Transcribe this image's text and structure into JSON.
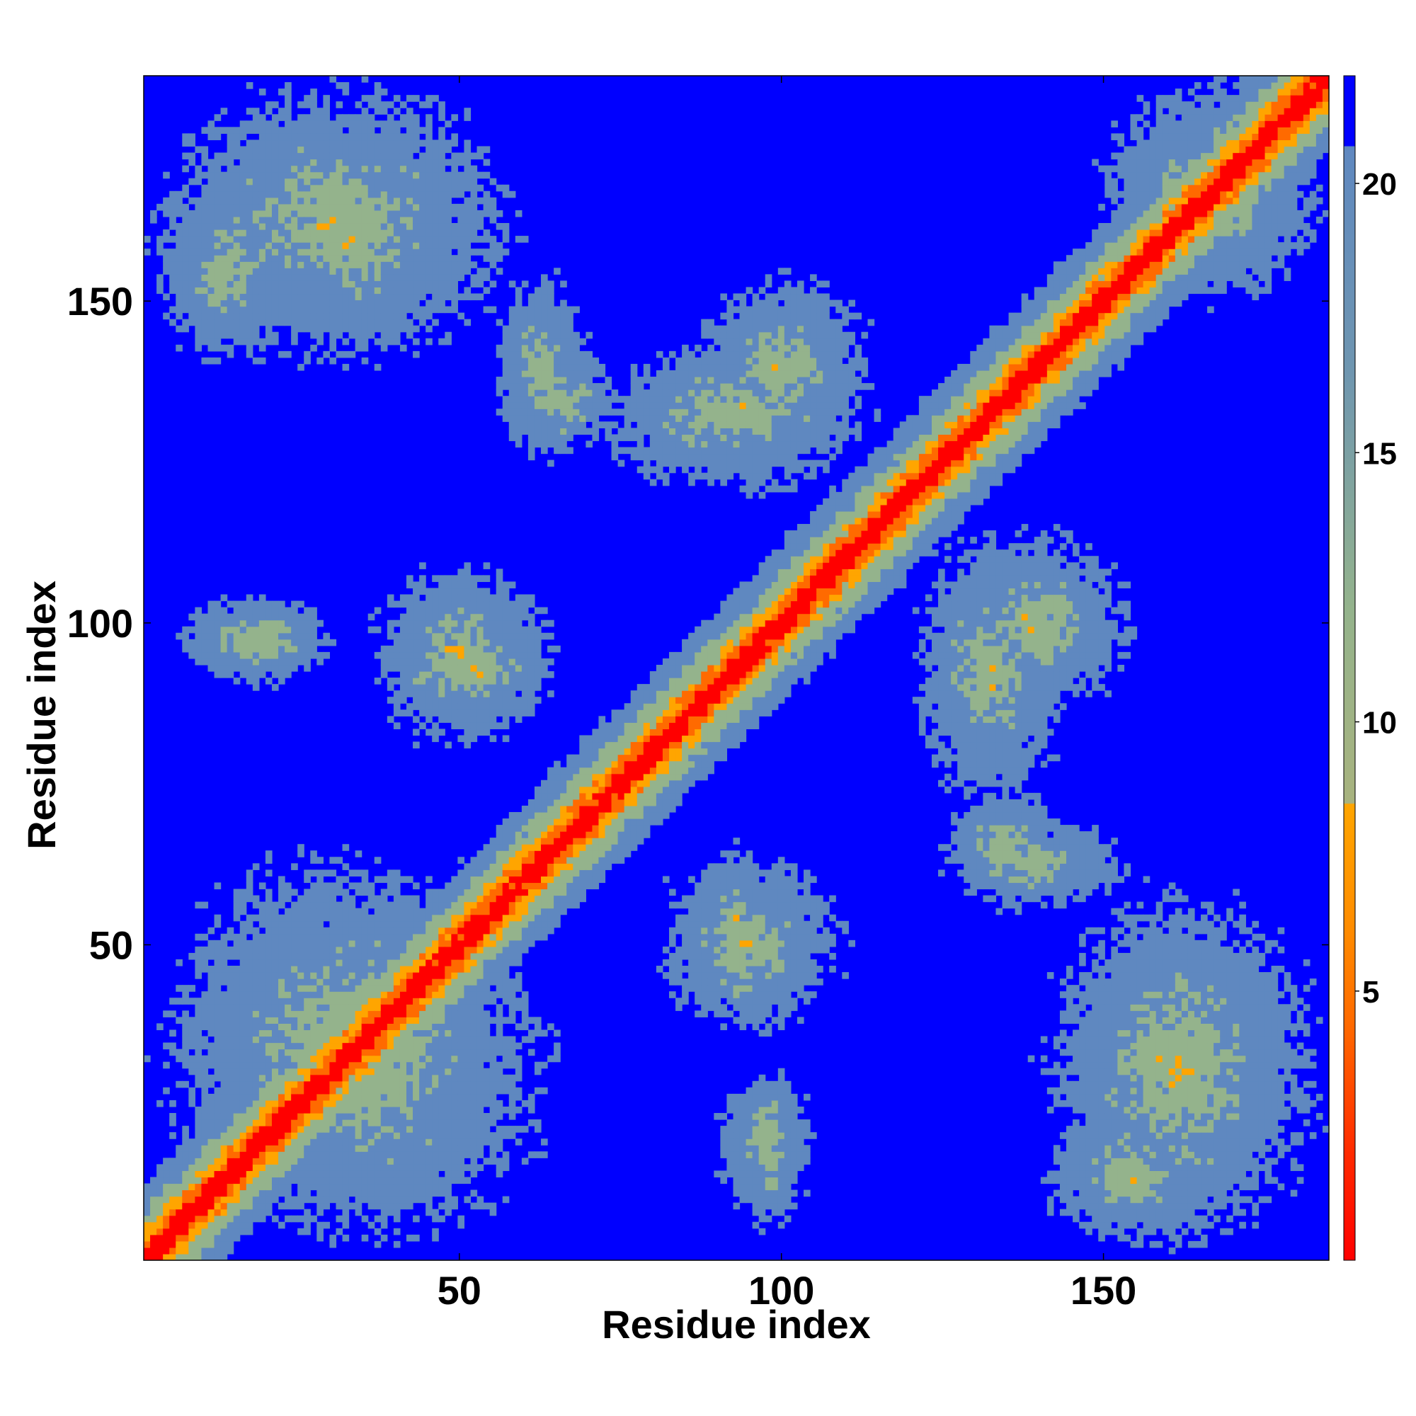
{
  "chart_data": {
    "type": "heatmap",
    "title": "",
    "xlabel": "Residue index",
    "ylabel": "Residue index",
    "xlim": [
      1,
      185
    ],
    "ylim": [
      1,
      185
    ],
    "x_ticks": [
      50,
      100,
      150
    ],
    "y_ticks": [
      50,
      100,
      150
    ],
    "x_tick_labels": [
      "50",
      "100",
      "150"
    ],
    "y_tick_labels": [
      "50",
      "100",
      "150"
    ],
    "colorbar": {
      "range": [
        0,
        22
      ],
      "ticks": [
        5,
        10,
        15,
        20
      ],
      "tick_labels": [
        "5",
        "10",
        "15",
        "20"
      ],
      "colors": {
        "near": "#ff0000",
        "close": "#ff6a00",
        "mid": "#ffa500",
        "medium": "#94b38c",
        "far": "#5f88c0",
        "beyond": "#0000ff"
      }
    },
    "grid": false,
    "legend": "colorbar-right",
    "contact_regions": [
      {
        "x": [
          1,
          185
        ],
        "y": [
          1,
          185
        ],
        "description": "main diagonal"
      },
      {
        "x": [
          2,
          25
        ],
        "y": [
          140,
          170
        ]
      },
      {
        "x": [
          20,
          45
        ],
        "y": [
          140,
          180
        ]
      },
      {
        "x": [
          55,
          75
        ],
        "y": [
          125,
          145
        ]
      },
      {
        "x": [
          85,
          115
        ],
        "y": [
          125,
          155
        ]
      },
      {
        "x": [
          5,
          30
        ],
        "y": [
          90,
          105
        ]
      },
      {
        "x": [
          40,
          65
        ],
        "y": [
          85,
          100
        ]
      },
      {
        "x": [
          120,
          145
        ],
        "y": [
          70,
          115
        ]
      },
      {
        "x": [
          80,
          110
        ],
        "y": [
          35,
          65
        ]
      },
      {
        "x": [
          125,
          155
        ],
        "y": [
          55,
          70
        ]
      },
      {
        "x": [
          2,
          60
        ],
        "y": [
          5,
          65
        ]
      },
      {
        "x": [
          90,
          105
        ],
        "y": [
          10,
          30
        ]
      },
      {
        "x": [
          140,
          185
        ],
        "y": [
          1,
          60
        ]
      },
      {
        "x": [
          150,
          185
        ],
        "y": [
          150,
          185
        ]
      }
    ]
  }
}
